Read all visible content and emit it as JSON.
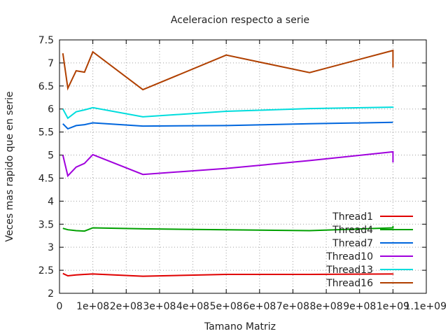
{
  "chart_data": {
    "type": "line",
    "title": "Aceleracion respecto a serie",
    "xlabel": "Tamano Matriz",
    "ylabel": "Veces mas rapido que en serie",
    "xlim": [
      0,
      1100000000
    ],
    "ylim": [
      2,
      7.5
    ],
    "grid": true,
    "legend_position": "bottom-right",
    "x_ticks": [
      0,
      100000000,
      200000000,
      300000000,
      400000000,
      500000000,
      600000000,
      700000000,
      800000000,
      900000000,
      1000000000,
      1100000000
    ],
    "x_tick_labels": [
      "0",
      "1e+08",
      "2e+08",
      "3e+08",
      "4e+08",
      "5e+08",
      "6e+08",
      "7e+08",
      "8e+08",
      "9e+08",
      "1e+09",
      "1.1e+09"
    ],
    "y_ticks": [
      2,
      2.5,
      3,
      3.5,
      4,
      4.5,
      5,
      5.5,
      6,
      6.5,
      7,
      7.5
    ],
    "y_tick_labels": [
      "2",
      "2.5",
      "3",
      "3.5",
      "4",
      "4.5",
      "5",
      "5.5",
      "6",
      "6.5",
      "7",
      "7.5"
    ],
    "x": [
      10000000,
      25000000,
      50000000,
      75000000,
      100000000,
      250000000,
      500000000,
      750000000,
      1000000000,
      1000000000
    ],
    "series": [
      {
        "name": "Thread1",
        "color": "#e00000",
        "values": [
          2.43,
          2.38,
          2.4,
          2.41,
          2.42,
          2.37,
          2.41,
          2.41,
          2.42,
          2.43
        ]
      },
      {
        "name": "Thread4",
        "color": "#00a000",
        "values": [
          3.41,
          3.38,
          3.36,
          3.35,
          3.42,
          3.4,
          3.38,
          3.36,
          3.42,
          3.46
        ]
      },
      {
        "name": "Thread7",
        "color": "#0066dd",
        "values": [
          5.68,
          5.57,
          5.64,
          5.66,
          5.7,
          5.63,
          5.64,
          5.68,
          5.71,
          5.71
        ]
      },
      {
        "name": "Thread10",
        "color": "#a000dd",
        "values": [
          5.0,
          4.55,
          4.74,
          4.82,
          5.01,
          4.58,
          4.71,
          4.88,
          5.07,
          4.84
        ]
      },
      {
        "name": "Thread13",
        "color": "#00dddd",
        "values": [
          6.0,
          5.8,
          5.94,
          5.98,
          6.03,
          5.83,
          5.95,
          6.01,
          6.04,
          6.05
        ]
      },
      {
        "name": "Thread16",
        "color": "#b04000",
        "values": [
          7.21,
          6.45,
          6.83,
          6.8,
          7.24,
          6.42,
          7.17,
          6.79,
          7.27,
          6.9
        ]
      }
    ]
  }
}
